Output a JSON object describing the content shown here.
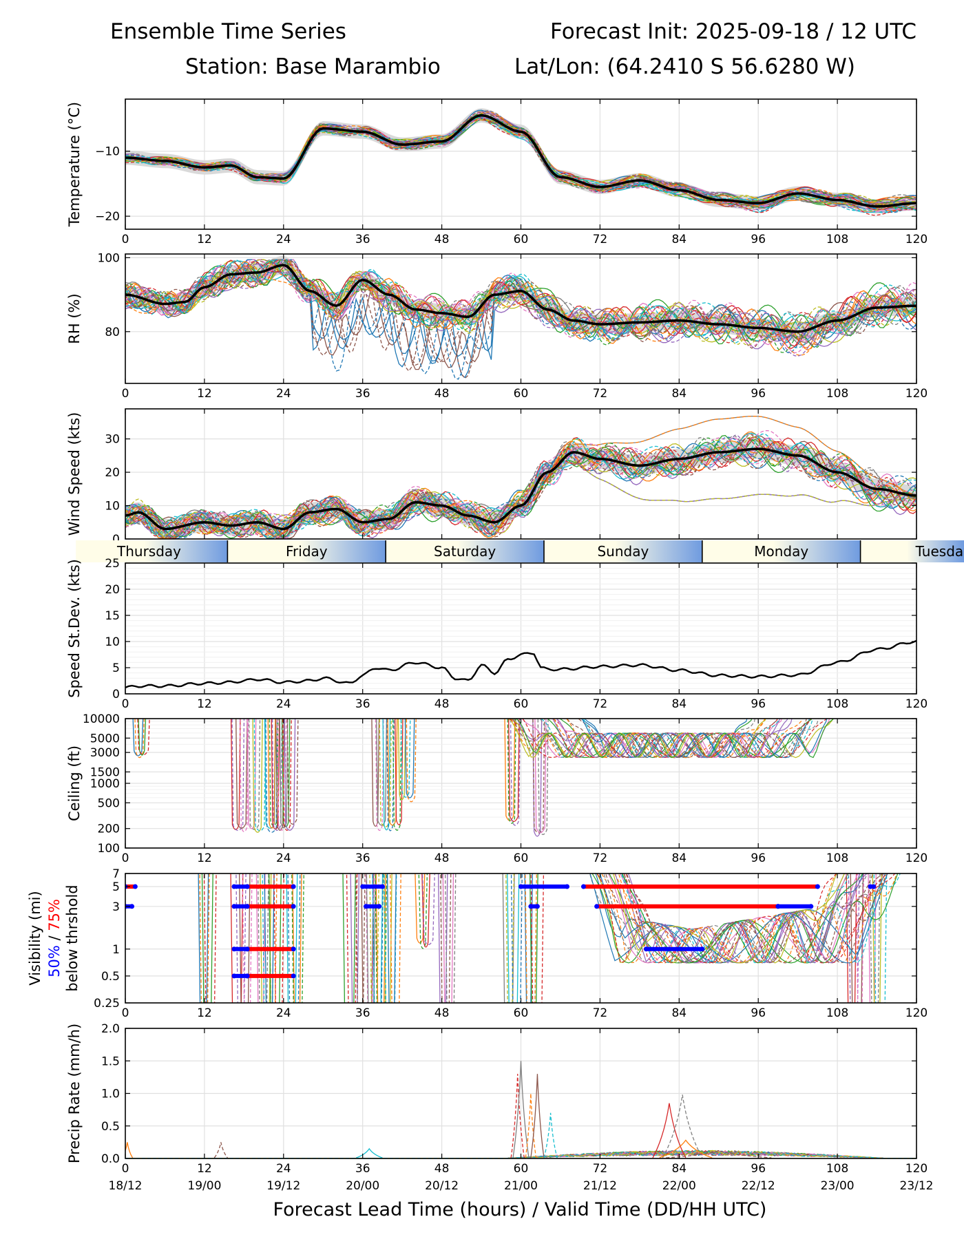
{
  "header": {
    "left_title": "Ensemble Time Series",
    "right_title": "Forecast Init: 2025-09-18 / 12 UTC",
    "station": "Station: Base Marambio",
    "latlon": "Lat/Lon: (64.2410 S 56.6280 W)"
  },
  "colors": {
    "ensemble": [
      "#1f77b4",
      "#ff7f0e",
      "#2ca02c",
      "#d62728",
      "#9467bd",
      "#8c564b",
      "#e377c2",
      "#7f7f7f",
      "#bcbd22",
      "#17becf"
    ],
    "mean": "#000000",
    "spread_fill": "#d9d9d9",
    "vis50": "#0000ff",
    "vis75": "#ff0000",
    "day_band_start": "#fffde8",
    "day_band_end": "#6f9be0",
    "grid": "#e0e0e0"
  },
  "x_axis": {
    "ticks": [
      0,
      12,
      24,
      36,
      48,
      60,
      72,
      84,
      96,
      108,
      120
    ],
    "valid_labels": [
      "18/12",
      "19/00",
      "19/12",
      "20/00",
      "20/12",
      "21/00",
      "21/12",
      "22/00",
      "22/12",
      "23/00",
      "23/12"
    ],
    "xlabel": "Forecast Lead Time (hours) / Valid Time (DD/HH UTC)"
  },
  "day_band": {
    "days": [
      "Thursday",
      "Friday",
      "Saturday",
      "Sunday",
      "Monday",
      "Tuesday"
    ],
    "boundaries_hours": [
      15.5,
      39.5,
      63.5,
      87.5,
      111.5
    ]
  },
  "chart_data": [
    {
      "type": "line",
      "id": "temperature",
      "ylabel": "Temperature (°C)",
      "ylim": [
        -22,
        -2
      ],
      "yticks": [
        -10,
        -20
      ],
      "ytick_labels": [
        "−10",
        "−20"
      ],
      "x": [
        0,
        6,
        12,
        16,
        20,
        24,
        30,
        36,
        42,
        48,
        54,
        60,
        66,
        72,
        78,
        84,
        90,
        96,
        102,
        108,
        114,
        120
      ],
      "mean": [
        -11,
        -11.5,
        -12.5,
        -12.2,
        -14,
        -14.2,
        -6.5,
        -7,
        -9,
        -8.5,
        -4.5,
        -7,
        -14,
        -15.5,
        -14.5,
        -16,
        -17.5,
        -18,
        -16.5,
        -17.5,
        -18.5,
        -18
      ],
      "spread": 1.1
    },
    {
      "type": "line",
      "id": "rh",
      "ylabel": "RH (%)",
      "ylim": [
        66,
        101
      ],
      "yticks": [
        80,
        100
      ],
      "ytick_labels": [
        "80",
        "100"
      ],
      "x": [
        0,
        6,
        9,
        12,
        16,
        20,
        24,
        28,
        32,
        36,
        40,
        44,
        48,
        52,
        56,
        60,
        64,
        68,
        72,
        78,
        84,
        90,
        96,
        102,
        108,
        114,
        120
      ],
      "mean": [
        90,
        87.5,
        88,
        92,
        95.5,
        96,
        98,
        91,
        87,
        94,
        90,
        86,
        85,
        84,
        90,
        91,
        86,
        83,
        82,
        82.5,
        83,
        82,
        81,
        80,
        83,
        86.5,
        87
      ],
      "spread": 2.5
    },
    {
      "type": "line",
      "id": "wind_speed",
      "ylabel": "Wind Speed (kts)",
      "ylim": [
        0,
        39
      ],
      "yticks": [
        0,
        10,
        20,
        30
      ],
      "ytick_labels": [
        "0",
        "10",
        "20",
        "30"
      ],
      "x": [
        0,
        2,
        6,
        12,
        16,
        20,
        24,
        28,
        32,
        36,
        40,
        44,
        48,
        52,
        56,
        60,
        64,
        68,
        72,
        78,
        84,
        90,
        96,
        102,
        108,
        114,
        120
      ],
      "mean": [
        7,
        8,
        3,
        5,
        4,
        5,
        3,
        8,
        9,
        5,
        6,
        11,
        10,
        7,
        5,
        10,
        20,
        26,
        24,
        22,
        24,
        26,
        27,
        25,
        20,
        15,
        13
      ],
      "spread": 3
    },
    {
      "type": "line",
      "id": "speed_stdev",
      "ylabel": "Speed St.Dev. (kts)",
      "ylim": [
        0,
        25
      ],
      "yticks": [
        0,
        5,
        10,
        15,
        20,
        25
      ],
      "ytick_labels": [
        "0",
        "5",
        "10",
        "15",
        "20",
        "25"
      ],
      "x": [
        0,
        2,
        6,
        12,
        16,
        18,
        20,
        24,
        28,
        30,
        34,
        36,
        38,
        40,
        44,
        48,
        50,
        52,
        54,
        56,
        58,
        60,
        62,
        63,
        64,
        66,
        72,
        78,
        84,
        90,
        96,
        102,
        108,
        114,
        120
      ],
      "mean": [
        1.2,
        1.5,
        1.5,
        2,
        2.2,
        2.5,
        2.8,
        2.2,
        2.5,
        3,
        2,
        3.5,
        5,
        4.5,
        6,
        5,
        3,
        2.5,
        5.5,
        4,
        6.5,
        7.5,
        7.8,
        5,
        4.7,
        4.7,
        5.2,
        5.5,
        4.5,
        3.5,
        3.3,
        3.6,
        6,
        8.5,
        10
      ],
      "spread": 0
    },
    {
      "type": "line",
      "id": "ceiling",
      "ylabel": "Ceiling (ft)",
      "yscale": "log",
      "ylim": [
        100,
        10000
      ],
      "yticks": [
        10000,
        5000,
        3000,
        1500,
        1000,
        500,
        200,
        100
      ],
      "ytick_labels": [
        "10000",
        "5000",
        "3000",
        "1500",
        "1000",
        "500",
        "200",
        "100"
      ],
      "dips": [
        {
          "x": 2.5,
          "width": 1,
          "y": 2200
        },
        {
          "x": 17.5,
          "width": 1.5,
          "y": 170
        },
        {
          "x": 20,
          "width": 1.5,
          "y": 160
        },
        {
          "x": 23,
          "width": 2.5,
          "y": 170
        },
        {
          "x": 25,
          "width": 1.5,
          "y": 180
        },
        {
          "x": 40,
          "width": 4,
          "y": 180
        },
        {
          "x": 43,
          "width": 2,
          "y": 500
        },
        {
          "x": 59,
          "width": 1.5,
          "y": 200
        },
        {
          "x": 63,
          "width": 1.5,
          "y": 140
        }
      ],
      "cloud_band": {
        "x_start": 58,
        "x_end": 108,
        "low": 2500,
        "high": 6000
      }
    },
    {
      "type": "line",
      "id": "visibility",
      "ylabel": "Visibility (mi)",
      "ylabel_50": "50%",
      "ylabel_sep": " / ",
      "ylabel_75": "75%",
      "ylabel_line2": "below thrshold",
      "yscale": "log",
      "ylim": [
        0.25,
        7
      ],
      "yticks": [
        7,
        5,
        3,
        1,
        0.5,
        0.25
      ],
      "ytick_labels": [
        "7",
        "5",
        "3",
        "1",
        "0.5",
        "0.25"
      ],
      "threshold_bars": [
        {
          "threshold": 5,
          "x_start": 0,
          "x_end": 1.5,
          "pct": 75
        },
        {
          "threshold": 5,
          "x_start": 16.5,
          "x_end": 18.5,
          "pct": 50
        },
        {
          "threshold": 5,
          "x_start": 18.5,
          "x_end": 25.5,
          "pct": 75
        },
        {
          "threshold": 5,
          "x_start": 36,
          "x_end": 39,
          "pct": 50
        },
        {
          "threshold": 5,
          "x_start": 60,
          "x_end": 67,
          "pct": 50
        },
        {
          "threshold": 5,
          "x_start": 69.5,
          "x_end": 105,
          "pct": 75
        },
        {
          "threshold": 5,
          "x_start": 113,
          "x_end": 113.5,
          "pct": 50
        },
        {
          "threshold": 3,
          "x_start": 0,
          "x_end": 1,
          "pct": 50
        },
        {
          "threshold": 3,
          "x_start": 16.5,
          "x_end": 18.5,
          "pct": 50
        },
        {
          "threshold": 3,
          "x_start": 18.5,
          "x_end": 25.5,
          "pct": 75
        },
        {
          "threshold": 3,
          "x_start": 36.5,
          "x_end": 38.5,
          "pct": 50
        },
        {
          "threshold": 3,
          "x_start": 61.5,
          "x_end": 62.5,
          "pct": 50
        },
        {
          "threshold": 3,
          "x_start": 71.5,
          "x_end": 99,
          "pct": 75
        },
        {
          "threshold": 3,
          "x_start": 99,
          "x_end": 104,
          "pct": 50
        },
        {
          "threshold": 1,
          "x_start": 16.5,
          "x_end": 18.5,
          "pct": 50
        },
        {
          "threshold": 1,
          "x_start": 18.5,
          "x_end": 25.5,
          "pct": 75
        },
        {
          "threshold": 1,
          "x_start": 79,
          "x_end": 87.5,
          "pct": 50
        },
        {
          "threshold": 0.5,
          "x_start": 16.5,
          "x_end": 18.5,
          "pct": 50
        },
        {
          "threshold": 0.5,
          "x_start": 18.5,
          "x_end": 25.5,
          "pct": 75
        }
      ],
      "dips": [
        {
          "x": 12.5,
          "width": 1.5,
          "y": 0.25
        },
        {
          "x": 18,
          "width": 2,
          "y": 0.25
        },
        {
          "x": 22,
          "width": 3,
          "y": 0.25
        },
        {
          "x": 26,
          "width": 1.5,
          "y": 0.25
        },
        {
          "x": 35,
          "width": 2,
          "y": 0.25
        },
        {
          "x": 38,
          "width": 2.5,
          "y": 0.25
        },
        {
          "x": 40.5,
          "width": 1.5,
          "y": 0.25
        },
        {
          "x": 45.5,
          "width": 1.5,
          "y": 1
        },
        {
          "x": 49,
          "width": 1.5,
          "y": 0.25
        },
        {
          "x": 59,
          "width": 2,
          "y": 0.25
        },
        {
          "x": 62,
          "width": 2,
          "y": 0.25
        },
        {
          "x": 111,
          "width": 1.5,
          "y": 0.25
        },
        {
          "x": 114,
          "width": 1.5,
          "y": 0.25
        }
      ],
      "low_band": {
        "x_start": 70,
        "x_end": 108,
        "low": 0.7,
        "high": 3
      }
    },
    {
      "type": "line",
      "id": "precip",
      "ylabel": "Precip Rate (mm/h)",
      "ylim": [
        0,
        2
      ],
      "yticks": [
        0,
        0.5,
        1,
        1.5,
        2
      ],
      "ytick_labels": [
        "0.0",
        "0.5",
        "1.0",
        "1.5",
        "2.0"
      ],
      "spikes": [
        {
          "x": 0.3,
          "y": 0.25,
          "w": 0.8
        },
        {
          "x": 14.5,
          "y": 0.25,
          "w": 1
        },
        {
          "x": 37,
          "y": 0.15,
          "w": 2
        },
        {
          "x": 59.5,
          "y": 1.3,
          "w": 1
        },
        {
          "x": 60,
          "y": 1.5,
          "w": 1.2
        },
        {
          "x": 61.5,
          "y": 1.0,
          "w": 0.8
        },
        {
          "x": 62.5,
          "y": 1.3,
          "w": 1
        },
        {
          "x": 64.5,
          "y": 0.7,
          "w": 1
        },
        {
          "x": 82.5,
          "y": 0.85,
          "w": 2.5
        },
        {
          "x": 84.5,
          "y": 0.98,
          "w": 3
        },
        {
          "x": 85,
          "y": 0.28,
          "w": 4
        },
        {
          "x": 90,
          "y": 0.12,
          "w": 8
        }
      ]
    }
  ]
}
